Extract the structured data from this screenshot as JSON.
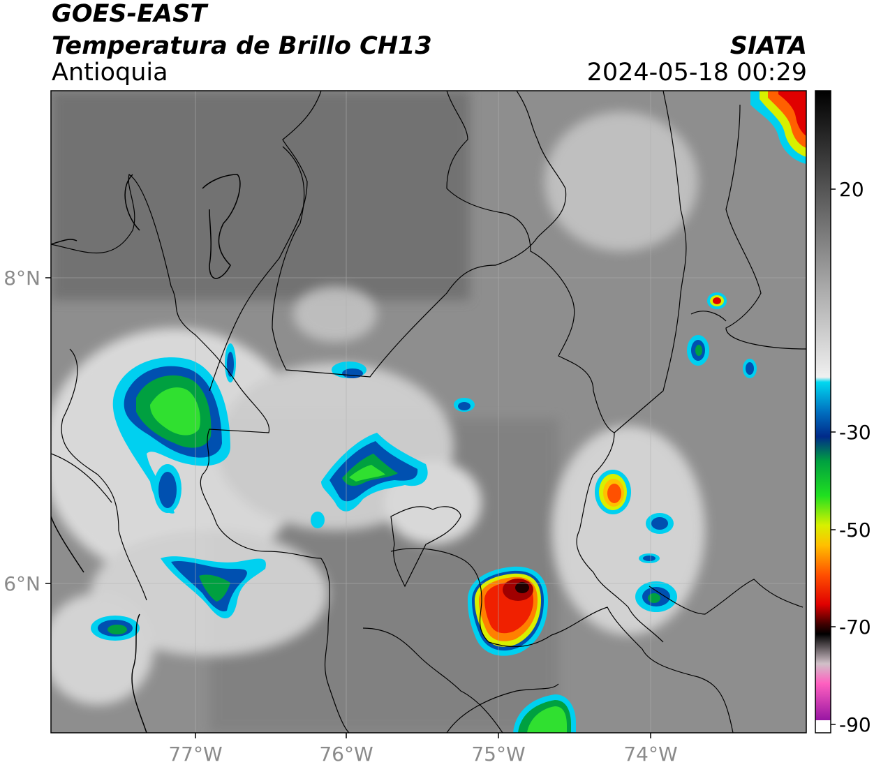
{
  "header": {
    "title": "GOES-EAST",
    "subtitle": "Temperatura de Brillo CH13",
    "region": "Antioquia",
    "organization": "SIATA",
    "timestamp": "2024-05-18 00:29"
  },
  "map": {
    "lon_ticks": [
      "77°W",
      "76°W",
      "75°W",
      "74°W"
    ],
    "lat_ticks": [
      "8°N",
      "6°N"
    ],
    "base_color": "#8c8c8c",
    "border_color": "#000000"
  },
  "colorbar": {
    "tick_labels": [
      "20",
      "-30",
      "-50",
      "-70",
      "-90"
    ],
    "stops": [
      {
        "value": 40,
        "color": "#000000"
      },
      {
        "value": 20,
        "color": "#555555"
      },
      {
        "value": 0,
        "color": "#aaaaaa"
      },
      {
        "value": -18,
        "color": "#f0f0f0"
      },
      {
        "value": -19,
        "color": "#00d8f0"
      },
      {
        "value": -25,
        "color": "#0070c0"
      },
      {
        "value": -30,
        "color": "#002a8a"
      },
      {
        "value": -35,
        "color": "#00a040"
      },
      {
        "value": -42,
        "color": "#20e020"
      },
      {
        "value": -48,
        "color": "#d8f000"
      },
      {
        "value": -52,
        "color": "#ffc000"
      },
      {
        "value": -58,
        "color": "#ff5000"
      },
      {
        "value": -64,
        "color": "#e00000"
      },
      {
        "value": -68,
        "color": "#400000"
      },
      {
        "value": -70,
        "color": "#000000"
      },
      {
        "value": -76,
        "color": "#d0c0c8"
      },
      {
        "value": -80,
        "color": "#ff60c0"
      },
      {
        "value": -88,
        "color": "#9010a0"
      },
      {
        "value": -90,
        "color": "#ffffff"
      }
    ]
  }
}
